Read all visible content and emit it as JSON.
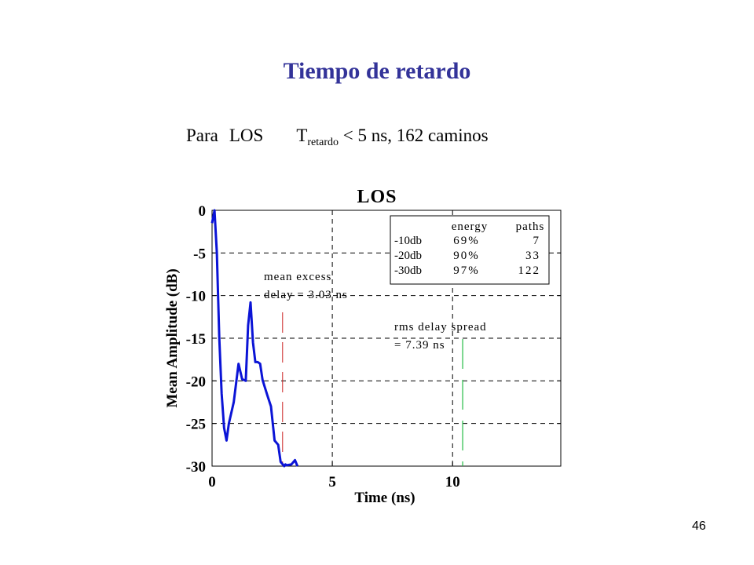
{
  "slide": {
    "title": "Tiempo de retardo",
    "subtitle_lead": "Para",
    "subtitle_los": "LOS",
    "subtitle_T": "T",
    "subtitle_sub": "retardo",
    "subtitle_rest": " < 5 ns, 162 caminos",
    "page_number": "46"
  },
  "colors": {
    "title": "#333399",
    "series": "#0b14d6",
    "mean_marker": "#cc2222",
    "rms_marker": "#22bb44"
  },
  "chart_data": {
    "type": "line",
    "title": "LOS",
    "xlabel": "Time (ns)",
    "ylabel": "Mean Amplitude (dB)",
    "xlim": [
      0,
      14.5
    ],
    "ylim": [
      -30,
      0
    ],
    "x_ticks": [
      0,
      5,
      10
    ],
    "y_ticks": [
      0,
      -5,
      -10,
      -15,
      -20,
      -25,
      -30
    ],
    "x_tick_labels": [
      "0",
      "5",
      "10"
    ],
    "y_tick_labels": [
      "0",
      "-5",
      "-10",
      "-15",
      "-20",
      "-25",
      "-30"
    ],
    "grid": true,
    "series": [
      {
        "x": [
          0,
          0.1,
          0.2,
          0.3,
          0.4,
          0.5,
          0.6,
          0.7,
          0.9,
          1.1,
          1.25,
          1.4,
          1.5,
          1.6,
          1.7,
          1.8,
          1.9,
          2.0,
          2.1,
          2.3,
          2.45,
          2.6,
          2.75,
          2.85,
          3.0,
          3.05,
          3.1,
          3.3,
          3.45,
          3.55
        ],
        "y": [
          -1.5,
          0,
          -5,
          -15,
          -21.5,
          -25.5,
          -27,
          -25,
          -22.5,
          -18,
          -19.8,
          -20,
          -13.5,
          -10.8,
          -15.5,
          -17.8,
          -17.8,
          -18,
          -19.9,
          -21.7,
          -23,
          -27,
          -27.5,
          -29.5,
          -30,
          -29.8,
          -29.9,
          -29.8,
          -29.3,
          -30
        ]
      }
    ],
    "annotations": [
      {
        "text_line1": "mean excess",
        "text_line2": "delay = 3.03 ns",
        "value_ns": 3.03
      },
      {
        "text_line1": "rms delay spread",
        "text_line2": "= 7.39 ns",
        "value_ns": 7.39
      }
    ],
    "table": {
      "headers": [
        "",
        "energy",
        "paths"
      ],
      "rows": [
        [
          "-10db",
          "69%",
          "7"
        ],
        [
          "-20db",
          "90%",
          "33"
        ],
        [
          "-30db",
          "97%",
          "122"
        ]
      ]
    }
  }
}
